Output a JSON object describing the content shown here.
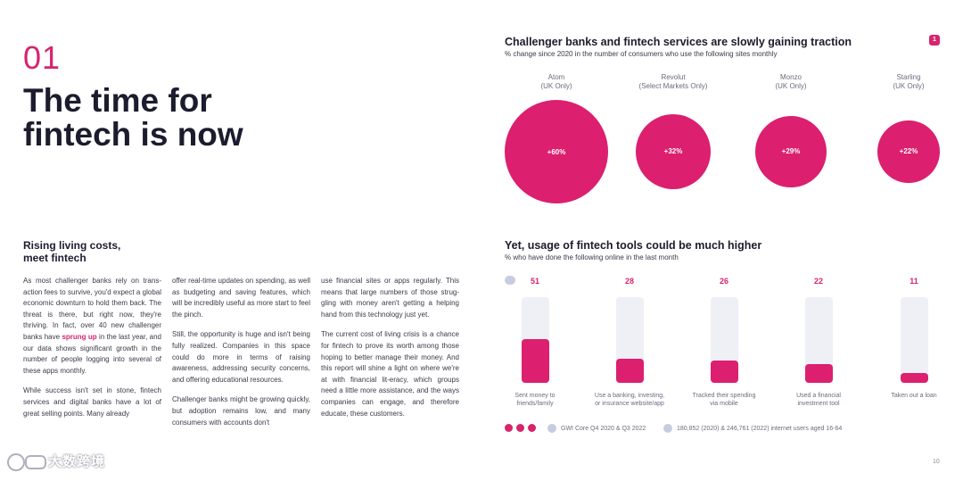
{
  "left": {
    "section_number": "01",
    "headline_line1": "The time for",
    "headline_line2": "fintech is now",
    "subheading_line1": "Rising living costs,",
    "subheading_line2": "meet fintech",
    "col1_p1_a": "As most challenger banks rely on trans-action fees to survive, you'd expect a global economic downturn to hold them back. The threat is there, but right now, they're thriving. In fact, over 40 new challenger banks have ",
    "col1_p1_hl": "sprung up",
    "col1_p1_b": " in the last year, and our data shows significant growth in the number of people logging into several of these apps monthly.",
    "col1_p2": "While success isn't set in stone, fintech services and digital banks have a lot of great selling points. Many already",
    "col2_p1": "offer real-time updates on spending, as well as budgeting and saving features, which will be incredibly useful as more start to feel the pinch.",
    "col2_p2": "Still, the opportunity is huge and isn't being fully realized. Companies in this space could do more in terms of raising awareness, addressing security concerns, and offering educational resources.",
    "col2_p3": "Challenger banks might be growing quickly, but adoption remains low, and many consumers with accounts don't",
    "col3_p1": "use financial sites or apps regularly. This means that large numbers of those strug-gling with money aren't getting a helping hand from this technology just yet.",
    "col3_p2": "The current cost of living crisis is a chance for fintech to prove its worth among those hoping to better manage their money. And this report will shine a light on where we're at with financial lit-eracy, which groups need a little more assistance, and the ways companies can engage, and therefore educate, these customers."
  },
  "badge": "1",
  "chart_data": [
    {
      "type": "bubble",
      "title": "Challenger banks and fintech services are slowly gaining traction",
      "subtitle": "% change since 2020 in the number of consumers who use the following sites monthly",
      "categories": [
        {
          "name": "Atom",
          "region": "(UK Only)"
        },
        {
          "name": "Revolut",
          "region": "(Select Markets Only)"
        },
        {
          "name": "Monzo",
          "region": "(UK Only)"
        },
        {
          "name": "Starling",
          "region": "(UK Only)"
        }
      ],
      "values": [
        60,
        32,
        29,
        22
      ],
      "value_labels": [
        "+60%",
        "+32%",
        "+29%",
        "+22%"
      ]
    },
    {
      "type": "bar",
      "title": "Yet, usage of fintech tools could be much higher",
      "subtitle": "% who have done the following online in the last month",
      "categories": [
        [
          "Sent money to",
          "friends/family"
        ],
        [
          "Use a banking, investing,",
          "or insurance website/app"
        ],
        [
          "Tracked their spending",
          "via mobile"
        ],
        [
          "Used a financial",
          "investment tool"
        ],
        [
          "Taken out a loan"
        ]
      ],
      "values": [
        51,
        28,
        26,
        22,
        11
      ],
      "ylim": [
        0,
        100
      ]
    }
  ],
  "footer": {
    "source": "GWI Core Q4 2020 & Q3 2022",
    "sample": "180,852 (2020) & 246,761 (2022) internet users aged 16-64"
  },
  "page_number": "10",
  "watermark": "大数跨境"
}
